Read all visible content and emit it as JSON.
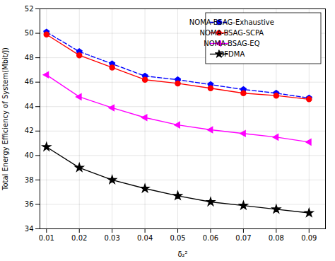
{
  "chart_data": {
    "type": "line",
    "xlabel": "δ₂²",
    "ylabel": "Total Energy Efficiency of System(Mbit/J)",
    "x": [
      0.01,
      0.02,
      0.03,
      0.04,
      0.05,
      0.06,
      0.07,
      0.08,
      0.09
    ],
    "series": [
      {
        "name": "NOMA-BSAG-Exhaustive",
        "color": "#0000FF",
        "marker": "pentagon",
        "line_style": "dashed",
        "values": [
          50.1,
          48.5,
          47.5,
          46.5,
          46.2,
          45.8,
          45.4,
          45.1,
          44.7
        ]
      },
      {
        "name": "NOMA-BSAG-SCPA",
        "color": "#FF0000",
        "marker": "circle",
        "line_style": "solid",
        "values": [
          49.9,
          48.2,
          47.2,
          46.2,
          45.9,
          45.5,
          45.1,
          44.9,
          44.6
        ]
      },
      {
        "name": "NOMA-BSAG-EQ",
        "color": "#FF00FF",
        "marker": "triangle-left",
        "line_style": "solid",
        "values": [
          46.6,
          44.8,
          43.9,
          43.1,
          42.5,
          42.1,
          41.8,
          41.5,
          41.1
        ]
      },
      {
        "name": "OFDMA",
        "color": "#000000",
        "marker": "star",
        "line_style": "solid",
        "values": [
          40.7,
          39.0,
          38.0,
          37.3,
          36.7,
          36.2,
          35.9,
          35.6,
          35.3
        ]
      }
    ],
    "xlim": [
      0.008,
      0.095
    ],
    "ylim": [
      34,
      52
    ],
    "xticks": [
      0.01,
      0.02,
      0.03,
      0.04,
      0.05,
      0.06,
      0.07,
      0.08,
      0.09
    ],
    "yticks": [
      34,
      36,
      38,
      40,
      42,
      44,
      46,
      48,
      50,
      52
    ],
    "grid": true,
    "legend": "upper right"
  }
}
